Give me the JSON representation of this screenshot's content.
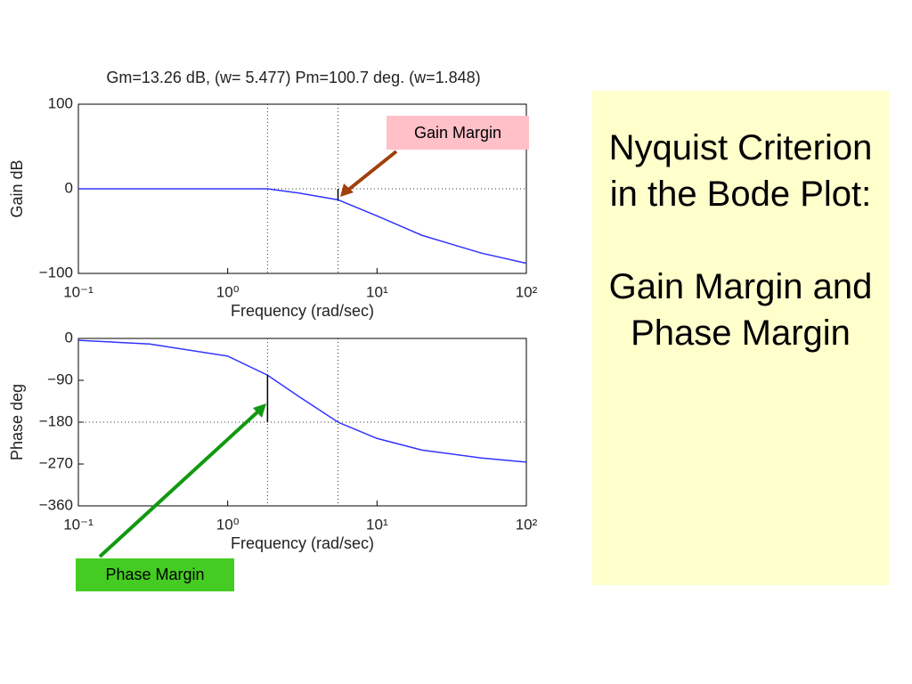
{
  "chart_data": [
    {
      "type": "line",
      "title": "Gm=13.26 dB, (w= 5.477)    Pm=100.7 deg. (w=1.848)",
      "x_label": "Frequency (rad/sec)",
      "y_label": "Gain dB",
      "log_x": true,
      "x": [
        0.1,
        0.3,
        1,
        1.848,
        3,
        5.477,
        10,
        20,
        50,
        100
      ],
      "series": [
        {
          "color": "#3333ff",
          "values": [
            0,
            0,
            0,
            0,
            -5,
            -13,
            -32,
            -55,
            -76,
            -88
          ]
        }
      ],
      "xlim": [
        0.1,
        100
      ],
      "xticks": [
        {
          "value": 0.1,
          "label": "10⁻¹"
        },
        {
          "value": 1,
          "label": "10⁰"
        },
        {
          "value": 10,
          "label": "10¹"
        },
        {
          "value": 100,
          "label": "10²"
        }
      ],
      "ylim": [
        -100,
        100
      ],
      "yticks": [
        {
          "value": -100,
          "label": "−100"
        },
        0,
        100
      ],
      "vlines": [
        1.848,
        5.477
      ],
      "hline": 0,
      "margin_index": 5
    },
    {
      "type": "line",
      "x_label": "Frequency (rad/sec)",
      "y_label": "Phase deg",
      "log_x": true,
      "x": [
        0.1,
        0.3,
        1,
        1.848,
        3,
        5.477,
        10,
        20,
        50,
        100
      ],
      "series": [
        {
          "color": "#3333ff",
          "values": [
            -4,
            -12,
            -38,
            -79,
            -125,
            -180,
            -215,
            -240,
            -257,
            -266
          ]
        }
      ],
      "xlim": [
        0.1,
        100
      ],
      "xticks": [
        {
          "value": 0.1,
          "label": "10⁻¹"
        },
        {
          "value": 1,
          "label": "10⁰"
        },
        {
          "value": 10,
          "label": "10¹"
        },
        {
          "value": 100,
          "label": "10²"
        }
      ],
      "ylim": [
        -360,
        0
      ],
      "yticks": [
        0,
        {
          "value": -90,
          "label": "−90"
        },
        {
          "value": -180,
          "label": "−180"
        },
        {
          "value": -270,
          "label": "−270"
        },
        {
          "value": -360,
          "label": "−360"
        }
      ],
      "vlines": [
        1.848,
        5.477
      ],
      "hline": -180,
      "margin_index": 3
    }
  ],
  "annotations": [
    "Gain Margin",
    "Phase Margin"
  ],
  "side_box": [
    "Nyquist Criterion in the Bode Plot:",
    "Gain Margin and Phase Margin"
  ]
}
